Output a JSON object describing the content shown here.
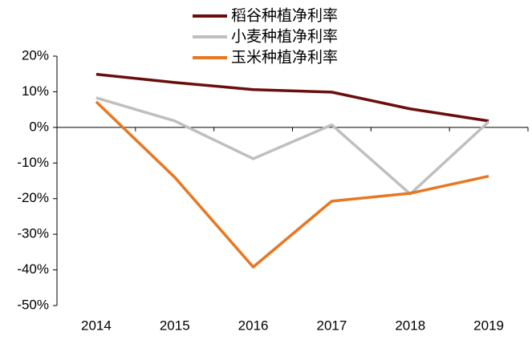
{
  "chart_data": {
    "type": "line",
    "categories": [
      "2014",
      "2015",
      "2016",
      "2017",
      "2018",
      "2019"
    ],
    "series": [
      {
        "name": "稻谷种植净利率",
        "color": "#6b0d0d",
        "values": [
          14.9,
          12.6,
          10.6,
          9.9,
          5.2,
          1.8
        ]
      },
      {
        "name": "小麦种植净利率",
        "color": "#bfbfbf",
        "values": [
          8.3,
          1.8,
          -8.8,
          0.7,
          -18.7,
          1.6
        ]
      },
      {
        "name": "玉米种植净利率",
        "color": "#e87722",
        "values": [
          7.2,
          -14.0,
          -39.2,
          -20.7,
          -18.5,
          -13.7
        ]
      }
    ],
    "ylim": [
      -50,
      20
    ],
    "yticks": [
      {
        "value": 20,
        "label": "20%"
      },
      {
        "value": 10,
        "label": "10%"
      },
      {
        "value": 0,
        "label": "0%"
      },
      {
        "value": -10,
        "label": "-10%"
      },
      {
        "value": -20,
        "label": "-20%"
      },
      {
        "value": -30,
        "label": "-30%"
      },
      {
        "value": -40,
        "label": "-40%"
      },
      {
        "value": -50,
        "label": "-50%"
      }
    ],
    "grid": false,
    "legend": "top"
  }
}
